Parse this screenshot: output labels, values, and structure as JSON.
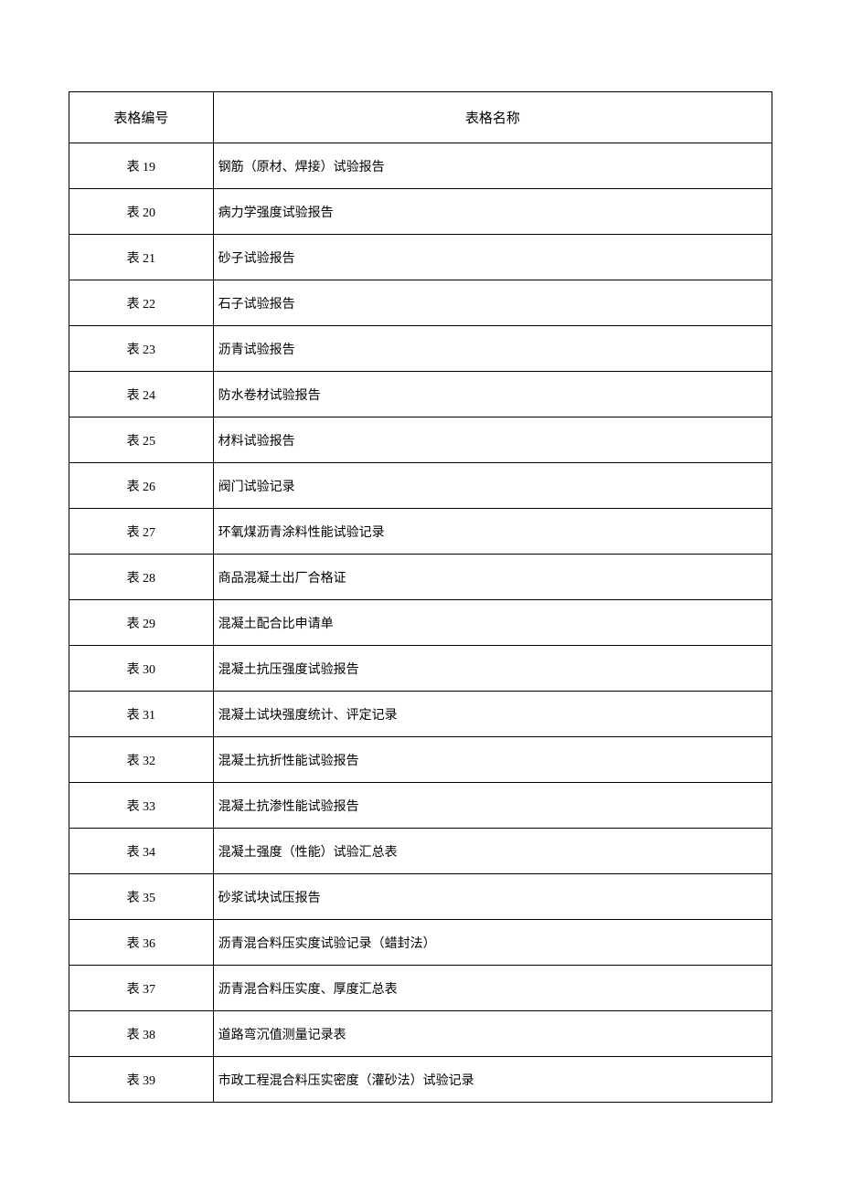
{
  "table": {
    "headers": {
      "id": "表格编号",
      "name": "表格名称"
    },
    "rows": [
      {
        "id": "表 19",
        "name": "钢筋（原材、焊接）试验报告"
      },
      {
        "id": "表 20",
        "name": "病力学强度试验报告"
      },
      {
        "id": "表 21",
        "name": "砂子试验报告"
      },
      {
        "id": "表 22",
        "name": "石子试验报告"
      },
      {
        "id": "表 23",
        "name": "沥青试验报告"
      },
      {
        "id": "表 24",
        "name": "防水卷材试验报告"
      },
      {
        "id": "表 25",
        "name": "材料试验报告"
      },
      {
        "id": "表 26",
        "name": "阀门试验记录"
      },
      {
        "id": "表 27",
        "name": "环氧煤沥青涂料性能试验记录"
      },
      {
        "id": "表 28",
        "name": "商品混凝土出厂合格证"
      },
      {
        "id": "表 29",
        "name": "混凝土配合比申请单"
      },
      {
        "id": "表 30",
        "name": "混凝土抗压强度试验报告"
      },
      {
        "id": "表 31",
        "name": "混凝土试块强度统计、评定记录"
      },
      {
        "id": "表 32",
        "name": "混凝土抗折性能试验报告"
      },
      {
        "id": "表 33",
        "name": "混凝土抗渗性能试验报告"
      },
      {
        "id": "表 34",
        "name": "混凝土强度（性能）试验汇总表"
      },
      {
        "id": "表 35",
        "name": "砂浆试块试压报告"
      },
      {
        "id": "表 36",
        "name": "沥青混合料压实度试验记录（蜡封法）"
      },
      {
        "id": "表 37",
        "name": "沥青混合料压实度、厚度汇总表"
      },
      {
        "id": "表 38",
        "name": "道路弯沉值测量记录表"
      },
      {
        "id": "表 39",
        "name": "市政工程混合料压实密度（灌砂法）试验记录"
      }
    ],
    "styling": {
      "border_color": "#000000",
      "background_color": "#ffffff",
      "text_color": "#000000",
      "header_fontsize": 15,
      "cell_fontsize": 14,
      "col_id_width_pct": 20.5,
      "col_name_width_pct": 79.5,
      "header_row_height": 56,
      "data_row_height": 50
    }
  }
}
